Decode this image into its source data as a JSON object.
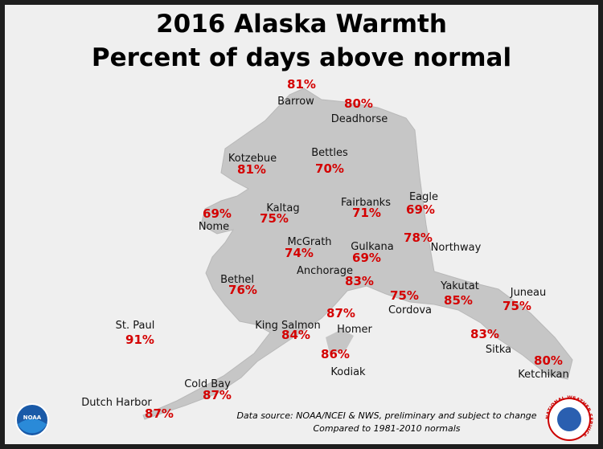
{
  "header": {
    "title": "2016 Alaska Warmth",
    "subtitle": "Percent of days above normal"
  },
  "stations": [
    {
      "name": "Barrow",
      "value": "81%"
    },
    {
      "name": "Deadhorse",
      "value": "80%"
    },
    {
      "name": "Kotzebue",
      "value": "81%"
    },
    {
      "name": "Bettles",
      "value": "70%"
    },
    {
      "name": "Fairbanks",
      "value": "71%"
    },
    {
      "name": "Eagle",
      "value": "69%"
    },
    {
      "name": "Nome",
      "value": "69%"
    },
    {
      "name": "Kaltag",
      "value": "75%"
    },
    {
      "name": "McGrath",
      "value": "74%"
    },
    {
      "name": "Gulkana",
      "value": "69%"
    },
    {
      "name": "Northway",
      "value": "78%"
    },
    {
      "name": "Anchorage",
      "value": "83%"
    },
    {
      "name": "Bethel",
      "value": "76%"
    },
    {
      "name": "Cordova",
      "value": "75%"
    },
    {
      "name": "Yakutat",
      "value": "85%"
    },
    {
      "name": "Juneau",
      "value": "75%"
    },
    {
      "name": "St. Paul",
      "value": "91%"
    },
    {
      "name": "King Salmon",
      "value": "84%"
    },
    {
      "name": "Homer",
      "value": "87%"
    },
    {
      "name": "Sitka",
      "value": "83%"
    },
    {
      "name": "Kodiak",
      "value": "86%"
    },
    {
      "name": "Ketchikan",
      "value": "80%"
    },
    {
      "name": "Cold Bay",
      "value": "87%"
    },
    {
      "name": "Dutch Harbor",
      "value": "87%"
    }
  ],
  "source": {
    "line1": "Data source: NOAA/NCEI & NWS, preliminary and subject to change",
    "line2": "Compared to 1981-2010 normals"
  },
  "logos": {
    "noaa": "NOAA",
    "nws": "NATIONAL WEATHER SERVICE"
  }
}
